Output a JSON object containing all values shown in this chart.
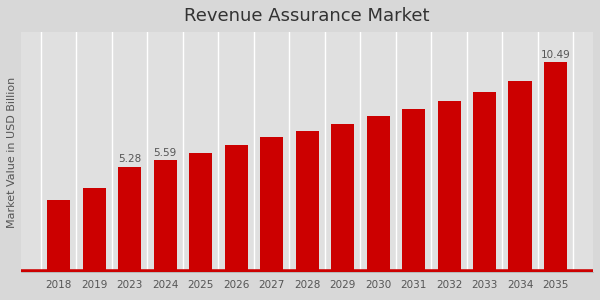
{
  "title": "Revenue Assurance Market",
  "ylabel": "Market Value in USD Billion",
  "categories": [
    "2018",
    "2019",
    "2023",
    "2024",
    "2025",
    "2026",
    "2027",
    "2028",
    "2029",
    "2030",
    "2031",
    "2032",
    "2033",
    "2034",
    "2035"
  ],
  "values": [
    3.6,
    4.2,
    5.28,
    5.59,
    5.95,
    6.35,
    6.75,
    7.05,
    7.4,
    7.8,
    8.15,
    8.55,
    9.0,
    9.55,
    10.49
  ],
  "bar_color": "#cc0000",
  "label_values": [
    null,
    null,
    5.28,
    5.59,
    null,
    null,
    null,
    null,
    null,
    null,
    null,
    null,
    null,
    null,
    10.49
  ],
  "background_color": "#d8d8d8",
  "plot_bg_color": "#e0e0e0",
  "title_fontsize": 13,
  "ylabel_fontsize": 8,
  "tick_fontsize": 7.5,
  "ylim": [
    0,
    12
  ],
  "bar_width": 0.65
}
